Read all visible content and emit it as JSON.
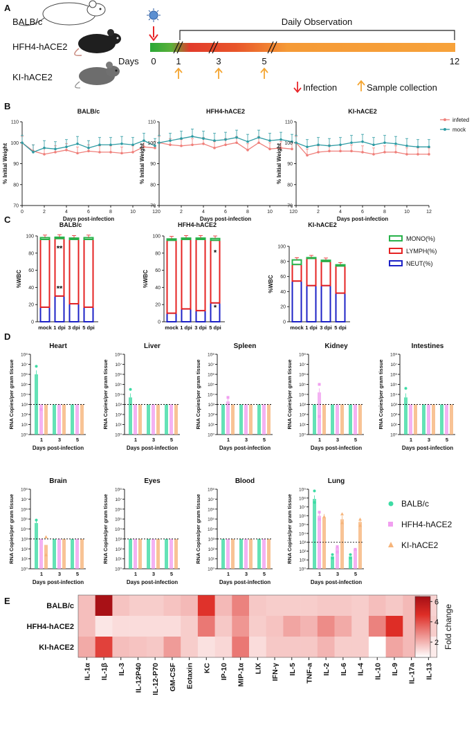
{
  "panel_labels": [
    "A",
    "B",
    "C",
    "D",
    "E"
  ],
  "panel_a": {
    "strains": [
      "BALB/c",
      "HFH4-hACE2",
      "KI-hACE2"
    ],
    "daily_observation": "Daily Observation",
    "days_label": "Days",
    "ticks": [
      "0",
      "1",
      "3",
      "5",
      "12"
    ],
    "legend_infection": "Infection",
    "legend_sample": "Sample collection",
    "colors": {
      "infection": "#e8262a",
      "sample": "#f4a531",
      "bar_start": "#2aa836",
      "bar_mid": "#e23b2b",
      "bar_end": "#f7a23a",
      "virus": "#4a7ec0"
    }
  },
  "panel_b": {
    "ylabel": "% Initial Weight",
    "xlabel": "Days post-infection",
    "legend": [
      "infeted",
      "mock"
    ],
    "colors": {
      "infected": "#ef7f7a",
      "mock": "#2e9ba3"
    }
  },
  "panel_c": {
    "ylabel": "%WBC",
    "categories": [
      "mock",
      "1 dpi",
      "3 dpi",
      "5 dpi"
    ],
    "legend": [
      "MONO(%)",
      "LYMPH(%)",
      "NEUT(%)"
    ],
    "colors": {
      "mono": "#27b24a",
      "lymph": "#e52222",
      "neut": "#1c21c6"
    },
    "significance": [
      "**",
      "**",
      "*",
      "*"
    ]
  },
  "panel_d": {
    "ylabel": "RNA Copies/per gram tissue",
    "xlabel": "Days post-infection",
    "x_categories": [
      "1",
      "3",
      "5"
    ],
    "y_ticks": [
      "10⁰",
      "10¹",
      "10²",
      "10³",
      "10⁴",
      "10⁵",
      "10⁶",
      "10⁷",
      "10⁸"
    ],
    "y_ticks_lung": [
      "10⁰",
      "10¹",
      "10²",
      "10³",
      "10⁴",
      "10⁵",
      "10⁶",
      "10⁷",
      "10⁸",
      "10⁹"
    ],
    "legend": [
      "BALB/c",
      "HFH4-hACE2",
      "KI-hACE2"
    ],
    "colors": {
      "balbc": "#3ddba4",
      "hfh4": "#f19ff0",
      "ki": "#f6b47a"
    }
  },
  "panel_e": {
    "legend_title": "Fold change",
    "legend_ticks": [
      "2",
      "4",
      "6"
    ],
    "colors": {
      "low": "#ffffff",
      "high": "#a50f15"
    }
  },
  "chart_data": [
    {
      "type": "line",
      "id": "B1",
      "title": "BALB/c",
      "xlabel": "Days post-infection",
      "ylabel": "% Initial Weight",
      "xlim": [
        0,
        12
      ],
      "ylim": [
        70,
        110
      ],
      "xticks": [
        0,
        2,
        4,
        6,
        8,
        10,
        12
      ],
      "yticks": [
        70,
        80,
        90,
        100,
        110
      ],
      "series": [
        {
          "name": "infeted",
          "x": [
            0,
            1,
            2,
            3,
            4,
            5,
            6,
            7,
            8,
            9,
            10,
            11,
            12
          ],
          "y": [
            100,
            96,
            94.5,
            95.5,
            96.5,
            95,
            96,
            95.5,
            95.5,
            95,
            95.5,
            98,
            97.5
          ]
        },
        {
          "name": "mock",
          "x": [
            0,
            1,
            2,
            3,
            4,
            5,
            6,
            7,
            8,
            9,
            10,
            11,
            12
          ],
          "y": [
            100,
            95.5,
            97.5,
            97,
            98,
            99.5,
            97.5,
            99,
            99,
            99.5,
            99,
            101,
            98.5
          ]
        }
      ]
    },
    {
      "type": "line",
      "id": "B2",
      "title": "HFH4-hACE2",
      "xlabel": "Days post-infection",
      "ylabel": "% Initial Weight",
      "xlim": [
        0,
        12
      ],
      "ylim": [
        70,
        110
      ],
      "xticks": [
        0,
        2,
        4,
        6,
        8,
        10,
        12
      ],
      "yticks": [
        70,
        80,
        90,
        100,
        110
      ],
      "series": [
        {
          "name": "infeted",
          "x": [
            0,
            1,
            2,
            3,
            4,
            5,
            6,
            7,
            8,
            9,
            10,
            11,
            12
          ],
          "y": [
            100,
            99,
            98.5,
            99,
            99.5,
            97.5,
            99,
            100,
            96.5,
            100,
            97,
            97.5,
            97
          ]
        },
        {
          "name": "mock",
          "x": [
            0,
            1,
            2,
            3,
            4,
            5,
            6,
            7,
            8,
            9,
            10,
            11,
            12
          ],
          "y": [
            100,
            101,
            102,
            103,
            102,
            101,
            101.5,
            102.5,
            100.5,
            102.5,
            101,
            101.5,
            100.5
          ]
        }
      ]
    },
    {
      "type": "line",
      "id": "B3",
      "title": "KI-hACE2",
      "xlabel": "Days post-infection",
      "ylabel": "% Initial Weight",
      "xlim": [
        0,
        12
      ],
      "ylim": [
        70,
        110
      ],
      "xticks": [
        0,
        2,
        4,
        6,
        8,
        10,
        12
      ],
      "yticks": [
        70,
        80,
        90,
        100,
        110
      ],
      "series": [
        {
          "name": "infeted",
          "x": [
            0,
            1,
            2,
            3,
            4,
            5,
            6,
            7,
            8,
            9,
            10,
            11,
            12
          ],
          "y": [
            100,
            94,
            95.5,
            96,
            96,
            96,
            95.5,
            94.5,
            95.5,
            95.5,
            94.5,
            94.5,
            94.5
          ]
        },
        {
          "name": "mock",
          "x": [
            0,
            1,
            2,
            3,
            4,
            5,
            6,
            7,
            8,
            9,
            10,
            11,
            12
          ],
          "y": [
            100,
            98,
            99,
            98.5,
            99,
            100,
            100.5,
            99,
            100,
            99.5,
            98.5,
            98,
            98
          ]
        }
      ]
    },
    {
      "type": "bar",
      "id": "C1",
      "title": "BALB/c",
      "stacked": true,
      "ylabel": "%WBC",
      "ylim": [
        0,
        100
      ],
      "yticks": [
        0,
        20,
        40,
        60,
        80,
        100
      ],
      "categories": [
        "mock",
        "1 dpi",
        "3 dpi",
        "5 dpi"
      ],
      "series": [
        {
          "name": "NEUT(%)",
          "values": [
            17,
            30,
            21,
            17
          ]
        },
        {
          "name": "LYMPH(%)",
          "values": [
            79,
            67,
            75,
            79
          ]
        },
        {
          "name": "MONO(%)",
          "values": [
            2,
            1.5,
            1.5,
            2
          ]
        }
      ],
      "annotations": [
        {
          "text": "**",
          "category": "1 dpi",
          "y": 86
        },
        {
          "text": "**",
          "category": "1 dpi",
          "y": 39
        }
      ]
    },
    {
      "type": "bar",
      "id": "C2",
      "title": "HFH4-hACE2",
      "stacked": true,
      "ylabel": "%WBC",
      "ylim": [
        0,
        100
      ],
      "yticks": [
        0,
        20,
        40,
        60,
        80,
        100
      ],
      "categories": [
        "mock",
        "1 dpi",
        "3 dpi",
        "5 dpi"
      ],
      "series": [
        {
          "name": "NEUT(%)",
          "values": [
            10,
            15,
            13,
            22
          ]
        },
        {
          "name": "LYMPH(%)",
          "values": [
            85,
            81,
            83,
            73
          ]
        },
        {
          "name": "MONO(%)",
          "values": [
            1.5,
            1.5,
            1.5,
            2
          ]
        }
      ],
      "annotations": [
        {
          "text": "*",
          "category": "5 dpi",
          "y": 81
        },
        {
          "text": "*",
          "category": "5 dpi",
          "y": 17
        }
      ]
    },
    {
      "type": "bar",
      "id": "C3",
      "title": "KI-hACE2",
      "stacked": true,
      "ylabel": "%WBC",
      "ylim": [
        0,
        100
      ],
      "yticks": [
        0,
        20,
        40,
        60,
        80,
        100
      ],
      "categories": [
        "mock",
        "1 dpi",
        "3 dpi",
        "5 dpi"
      ],
      "series": [
        {
          "name": "NEUT(%)",
          "values": [
            54,
            48,
            48,
            38
          ]
        },
        {
          "name": "LYMPH(%)",
          "values": [
            22,
            36,
            32,
            36
          ]
        },
        {
          "name": "MONO(%)",
          "values": [
            6,
            1,
            1.5,
            1.5
          ]
        }
      ]
    },
    {
      "type": "bar",
      "id": "D-heart",
      "title": "Heart",
      "log": true,
      "ylim": [
        0,
        8
      ],
      "categories": [
        "1",
        "3",
        "5"
      ],
      "detection_limit": 3,
      "series": [
        {
          "name": "BALB/c",
          "values": [
            6,
            3,
            3
          ]
        },
        {
          "name": "HFH4-hACE2",
          "values": [
            3,
            3,
            3
          ]
        },
        {
          "name": "KI-hACE2",
          "values": [
            3,
            3,
            3
          ]
        }
      ],
      "points": [
        {
          "series": 0,
          "cat": 0,
          "v": 6.8
        },
        {
          "series": 1,
          "cat": 0,
          "v": 2.5
        }
      ]
    },
    {
      "type": "bar",
      "id": "D-liver",
      "title": "Liver",
      "log": true,
      "ylim": [
        0,
        8
      ],
      "categories": [
        "1",
        "3",
        "5"
      ],
      "detection_limit": 3,
      "series": [
        {
          "name": "BALB/c",
          "values": [
            3.7,
            3,
            3
          ]
        },
        {
          "name": "HFH4-hACE2",
          "values": [
            3,
            3,
            3
          ]
        },
        {
          "name": "KI-hACE2",
          "values": [
            3,
            3,
            3
          ]
        }
      ],
      "points": [
        {
          "series": 0,
          "cat": 0,
          "v": 4.5
        }
      ]
    },
    {
      "type": "bar",
      "id": "D-spleen",
      "title": "Spleen",
      "log": true,
      "ylim": [
        0,
        8
      ],
      "categories": [
        "1",
        "3",
        "5"
      ],
      "detection_limit": 3,
      "series": [
        {
          "name": "BALB/c",
          "values": [
            3,
            3,
            3
          ]
        },
        {
          "name": "HFH4-hACE2",
          "values": [
            3.3,
            3,
            3
          ]
        },
        {
          "name": "KI-hACE2",
          "values": [
            3,
            3,
            3
          ]
        }
      ],
      "points": [
        {
          "series": 1,
          "cat": 0,
          "v": 3.7
        }
      ]
    },
    {
      "type": "bar",
      "id": "D-kidney",
      "title": "Kidney",
      "log": true,
      "ylim": [
        0,
        8
      ],
      "categories": [
        "1",
        "3",
        "5"
      ],
      "detection_limit": 3,
      "series": [
        {
          "name": "BALB/c",
          "values": [
            3,
            3,
            3
          ]
        },
        {
          "name": "HFH4-hACE2",
          "values": [
            4.2,
            3,
            3
          ]
        },
        {
          "name": "KI-hACE2",
          "values": [
            3,
            3,
            3
          ]
        }
      ],
      "points": [
        {
          "series": 1,
          "cat": 0,
          "v": 5.0
        },
        {
          "series": 1,
          "cat": 0,
          "v": 1.8
        }
      ]
    },
    {
      "type": "bar",
      "id": "D-intestines",
      "title": "Intestines",
      "log": true,
      "ylim": [
        0,
        8
      ],
      "categories": [
        "1",
        "3",
        "5"
      ],
      "detection_limit": 3,
      "series": [
        {
          "name": "BALB/c",
          "values": [
            3.7,
            3,
            3
          ]
        },
        {
          "name": "HFH4-hACE2",
          "values": [
            3,
            3,
            3
          ]
        },
        {
          "name": "KI-hACE2",
          "values": [
            3,
            3,
            3
          ]
        }
      ],
      "points": [
        {
          "series": 0,
          "cat": 0,
          "v": 4.6
        }
      ]
    },
    {
      "type": "bar",
      "id": "D-brain",
      "title": "Brain",
      "log": true,
      "ylim": [
        0,
        8
      ],
      "categories": [
        "1",
        "3",
        "5"
      ],
      "detection_limit": 3,
      "series": [
        {
          "name": "BALB/c",
          "values": [
            4.6,
            3,
            3
          ]
        },
        {
          "name": "HFH4-hACE2",
          "values": [
            3,
            3,
            3
          ]
        },
        {
          "name": "KI-hACE2",
          "values": [
            2.4,
            3,
            3
          ]
        }
      ],
      "points": [
        {
          "series": 0,
          "cat": 0,
          "v": 4.9
        },
        {
          "series": 2,
          "cat": 0,
          "v": 3.2
        },
        {
          "series": 2,
          "cat": 0,
          "v": 1.4
        }
      ]
    },
    {
      "type": "bar",
      "id": "D-eyes",
      "title": "Eyes",
      "log": true,
      "ylim": [
        0,
        8
      ],
      "categories": [
        "1",
        "3",
        "5"
      ],
      "detection_limit": 3,
      "series": [
        {
          "name": "BALB/c",
          "values": [
            3,
            3,
            3
          ]
        },
        {
          "name": "HFH4-hACE2",
          "values": [
            3,
            3,
            3
          ]
        },
        {
          "name": "KI-hACE2",
          "values": [
            3,
            3,
            3
          ]
        }
      ],
      "points": []
    },
    {
      "type": "bar",
      "id": "D-blood",
      "title": "Blood",
      "log": true,
      "ylim": [
        0,
        8
      ],
      "categories": [
        "1",
        "3",
        "5"
      ],
      "detection_limit": 3,
      "series": [
        {
          "name": "BALB/c",
          "values": [
            3,
            3,
            3
          ]
        },
        {
          "name": "HFH4-hACE2",
          "values": [
            3,
            3,
            3
          ]
        },
        {
          "name": "KI-hACE2",
          "values": [
            3,
            3,
            3
          ]
        }
      ],
      "points": []
    },
    {
      "type": "bar",
      "id": "D-lung",
      "title": "Lung",
      "log": true,
      "ylim": [
        0,
        9
      ],
      "categories": [
        "1",
        "3",
        "5"
      ],
      "detection_limit": 3,
      "series": [
        {
          "name": "BALB/c",
          "values": [
            7.9,
            1.4,
            1.4
          ]
        },
        {
          "name": "HFH4-hACE2",
          "values": [
            6.0,
            2.4,
            2.2
          ]
        },
        {
          "name": "KI-hACE2",
          "values": [
            5.8,
            5.6,
            5.3
          ]
        }
      ],
      "points": [
        {
          "series": 0,
          "cat": 0,
          "v": 8.8
        },
        {
          "series": 0,
          "cat": 0,
          "v": 7.5
        },
        {
          "series": 1,
          "cat": 0,
          "v": 6.4
        },
        {
          "series": 1,
          "cat": 0,
          "v": 5.6
        },
        {
          "series": 2,
          "cat": 0,
          "v": 5.9
        },
        {
          "series": 0,
          "cat": 1,
          "v": 1.6
        },
        {
          "series": 0,
          "cat": 1,
          "v": 1.2
        },
        {
          "series": 1,
          "cat": 1,
          "v": 2.5
        },
        {
          "series": 1,
          "cat": 1,
          "v": 1.9
        },
        {
          "series": 2,
          "cat": 1,
          "v": 6.2
        },
        {
          "series": 2,
          "cat": 1,
          "v": 5.2
        },
        {
          "series": 0,
          "cat": 2,
          "v": 1.6
        },
        {
          "series": 0,
          "cat": 2,
          "v": 1.2
        },
        {
          "series": 1,
          "cat": 2,
          "v": 2.2
        },
        {
          "series": 2,
          "cat": 2,
          "v": 5.6
        },
        {
          "series": 2,
          "cat": 2,
          "v": 4.9
        }
      ]
    },
    {
      "type": "heatmap",
      "id": "E",
      "legend_title": "Fold change",
      "vmin": 0.5,
      "vmax": 6.5,
      "rows": [
        "BALB/c",
        "HFH4-hACE2",
        "KI-hACE2"
      ],
      "cols": [
        "IL-1α",
        "IL-1β",
        "IL-3",
        "IL-12P40",
        "IL-12-P70",
        "GM-CSF",
        "Eotaxin",
        "KC",
        "IP-10",
        "MIP-1α",
        "LIX",
        "IFN-γ",
        "IL-5",
        "TNF-a",
        "IL-2",
        "IL-6",
        "IL-4",
        "IL-10",
        "IL-9",
        "IL-17a",
        "IL-13"
      ],
      "values": [
        [
          1.8,
          6.4,
          1.7,
          1.5,
          1.5,
          1.7,
          1.9,
          4.6,
          1.9,
          3.0,
          1.6,
          1.5,
          1.5,
          1.5,
          1.6,
          1.6,
          1.5,
          1.8,
          1.6,
          1.9,
          1.4
        ],
        [
          1.8,
          1.0,
          1.2,
          1.2,
          1.2,
          1.2,
          1.5,
          3.2,
          1.6,
          2.6,
          1.5,
          1.7,
          2.3,
          2.0,
          2.8,
          2.2,
          1.5,
          3.0,
          4.7,
          1.9,
          1.5
        ],
        [
          2.2,
          4.3,
          1.8,
          1.7,
          1.6,
          2.5,
          1.5,
          1.1,
          1.3,
          3.2,
          1.2,
          1.6,
          1.6,
          1.6,
          2.0,
          1.5,
          1.5,
          0.5,
          2.3,
          1.9,
          0.9
        ]
      ]
    }
  ]
}
